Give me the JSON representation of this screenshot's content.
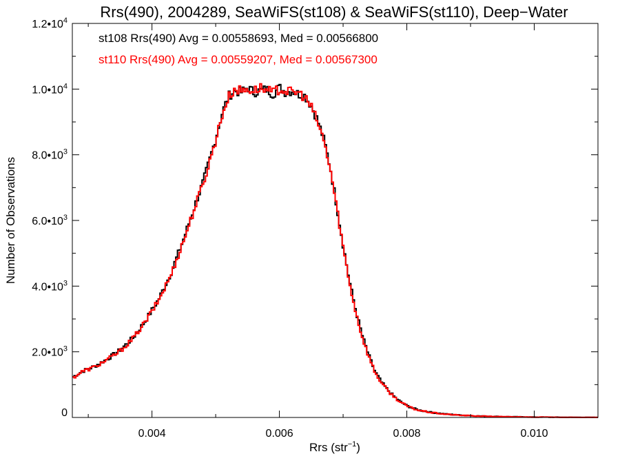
{
  "chart_data": {
    "type": "line",
    "title": "Rrs(490), 2004289, SeaWiFS(st108) & SeaWiFS(st110), Deep−Water",
    "xlabel": "Rrs (str",
    "xlabel_sup": "−1",
    "xlabel_close": ")",
    "ylabel": "Number of Observations",
    "xlim": [
      0.00275,
      0.011
    ],
    "ylim": [
      0,
      12000
    ],
    "x_ticks": [
      {
        "value": 0.004,
        "label": "0.004"
      },
      {
        "value": 0.006,
        "label": "0.006"
      },
      {
        "value": 0.008,
        "label": "0.008"
      },
      {
        "value": 0.01,
        "label": "0.010"
      }
    ],
    "y_ticks": [
      {
        "value": 0,
        "mant": "0",
        "exp": ""
      },
      {
        "value": 2000,
        "mant": "2.0•10",
        "exp": "3"
      },
      {
        "value": 4000,
        "mant": "4.0•10",
        "exp": "3"
      },
      {
        "value": 6000,
        "mant": "6.0•10",
        "exp": "3"
      },
      {
        "value": 8000,
        "mant": "8.0•10",
        "exp": "3"
      },
      {
        "value": 10000,
        "mant": "1.0•10",
        "exp": "4"
      },
      {
        "value": 12000,
        "mant": "1.2•10",
        "exp": "4"
      }
    ],
    "annotations": [
      {
        "text": "st108 Rrs(490) Avg = 0.00558693, Med = 0.00566800",
        "color": "#000000"
      },
      {
        "text": "st110 Rrs(490) Avg = 0.00559207, Med = 0.00567300",
        "color": "#ff0000"
      }
    ],
    "series": [
      {
        "color": "#000000",
        "style": "step",
        "x": [
          0.00275,
          0.0029,
          0.0031,
          0.0033,
          0.0035,
          0.0037,
          0.0039,
          0.0041,
          0.0043,
          0.0045,
          0.0047,
          0.0048,
          0.0049,
          0.005,
          0.0051,
          0.0052,
          0.0053,
          0.0054,
          0.0055,
          0.0056,
          0.0057,
          0.0058,
          0.0059,
          0.006,
          0.0061,
          0.0062,
          0.0063,
          0.0064,
          0.0065,
          0.0066,
          0.0067,
          0.0068,
          0.0069,
          0.007,
          0.0071,
          0.0072,
          0.0073,
          0.0074,
          0.0075,
          0.0076,
          0.0077,
          0.0078,
          0.0079,
          0.008,
          0.0081,
          0.0082,
          0.0084,
          0.0086,
          0.0088,
          0.009,
          0.0092,
          0.0095,
          0.01,
          0.0105,
          0.011
        ],
        "y": [
          1220,
          1400,
          1560,
          1780,
          2050,
          2420,
          2950,
          3580,
          4400,
          5450,
          6600,
          7150,
          7800,
          8500,
          9250,
          9780,
          9950,
          9900,
          10050,
          9900,
          9950,
          10000,
          9850,
          10050,
          9900,
          9950,
          9850,
          9800,
          9500,
          9050,
          8450,
          7600,
          6450,
          5250,
          4150,
          3250,
          2500,
          1900,
          1400,
          1080,
          840,
          640,
          480,
          360,
          280,
          220,
          150,
          105,
          75,
          55,
          40,
          25,
          12,
          6,
          2
        ]
      },
      {
        "color": "#ff0000",
        "style": "step",
        "x": [
          0.00275,
          0.0029,
          0.0031,
          0.0033,
          0.0035,
          0.0037,
          0.0039,
          0.0041,
          0.0043,
          0.0045,
          0.0047,
          0.0048,
          0.0049,
          0.005,
          0.0051,
          0.0052,
          0.0053,
          0.0054,
          0.0055,
          0.0056,
          0.0057,
          0.0058,
          0.0059,
          0.006,
          0.0061,
          0.0062,
          0.0063,
          0.0064,
          0.0065,
          0.0066,
          0.0067,
          0.0068,
          0.0069,
          0.007,
          0.0071,
          0.0072,
          0.0073,
          0.0074,
          0.0075,
          0.0076,
          0.0077,
          0.0078,
          0.0079,
          0.008,
          0.0081,
          0.0082,
          0.0084,
          0.0086,
          0.0088,
          0.009,
          0.0092,
          0.0095,
          0.01,
          0.0105,
          0.011
        ],
        "y": [
          1200,
          1390,
          1540,
          1760,
          2020,
          2400,
          2920,
          3550,
          4350,
          5400,
          6550,
          7100,
          7750,
          8450,
          9200,
          9750,
          10000,
          9950,
          10000,
          9950,
          10050,
          9950,
          9900,
          10000,
          9950,
          9900,
          9900,
          9750,
          9450,
          9000,
          8400,
          7550,
          6400,
          5200,
          4100,
          3200,
          2450,
          1870,
          1380,
          1060,
          820,
          630,
          470,
          350,
          270,
          210,
          145,
          100,
          72,
          52,
          38,
          24,
          11,
          5,
          2
        ]
      }
    ]
  }
}
